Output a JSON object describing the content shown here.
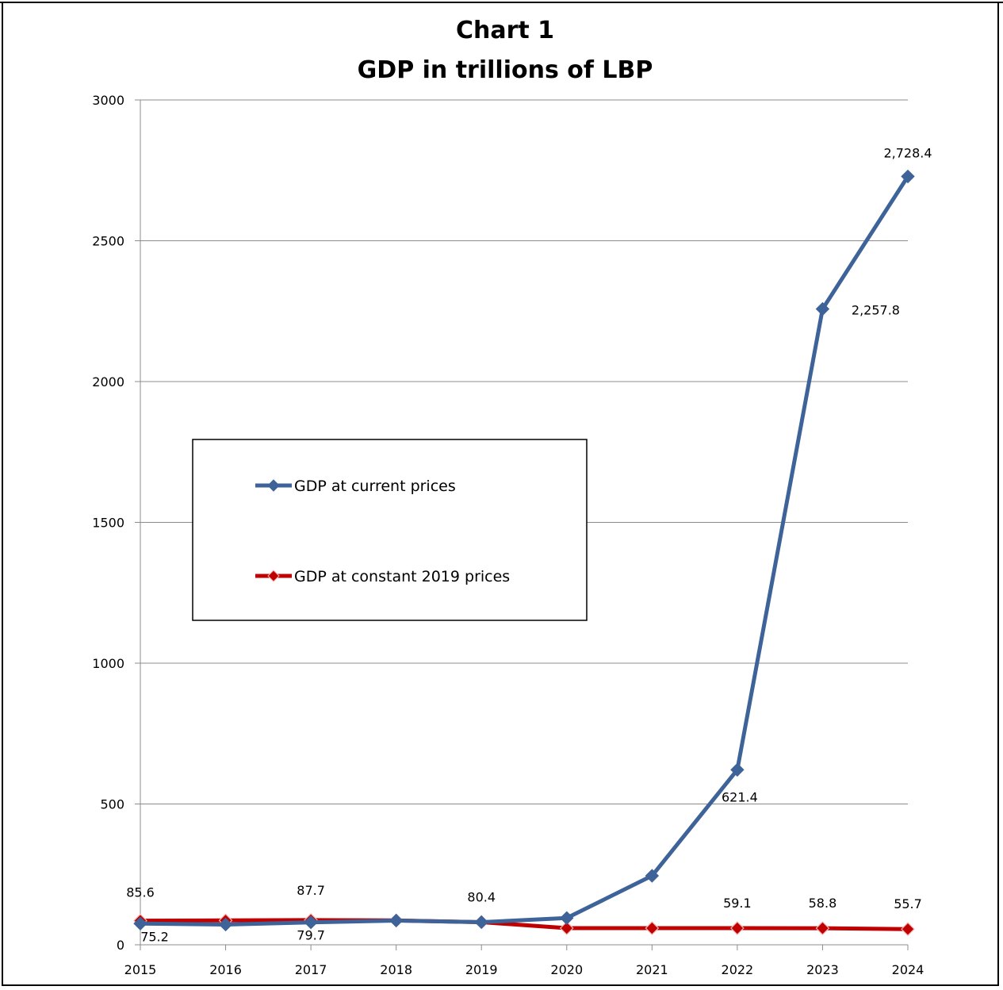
{
  "chart_data": {
    "type": "line",
    "title": "Chart 1",
    "subtitle": "GDP in trillions of LBP",
    "xlabel": "",
    "ylabel": "",
    "categories": [
      "2015",
      "2016",
      "2017",
      "2018",
      "2019",
      "2020",
      "2021",
      "2022",
      "2023",
      "2024"
    ],
    "ylim": [
      0,
      3000
    ],
    "yticks": [
      "0",
      "500",
      "1000",
      "1500",
      "2000",
      "2500",
      "3000"
    ],
    "grid": true,
    "legend_position": "center-left",
    "series": [
      {
        "name": "GDP at current prices",
        "color": "#3E6399",
        "values": [
          75.2,
          72.0,
          79.7,
          86.0,
          80.4,
          95.0,
          245.0,
          621.4,
          2257.8,
          2728.4
        ],
        "labels": [
          "75.2",
          "",
          "79.7",
          "",
          "",
          "",
          "",
          "621.4",
          "2,257.8",
          "2,728.4"
        ]
      },
      {
        "name": "GDP at constant 2019 prices",
        "color": "#C00000",
        "values": [
          85.6,
          86.5,
          87.7,
          86.5,
          80.4,
          59.0,
          59.0,
          59.1,
          58.8,
          55.7
        ],
        "labels": [
          "85.6",
          "",
          "87.7",
          "",
          "80.4",
          "",
          "",
          "59.1",
          "58.8",
          "55.7"
        ]
      }
    ]
  }
}
